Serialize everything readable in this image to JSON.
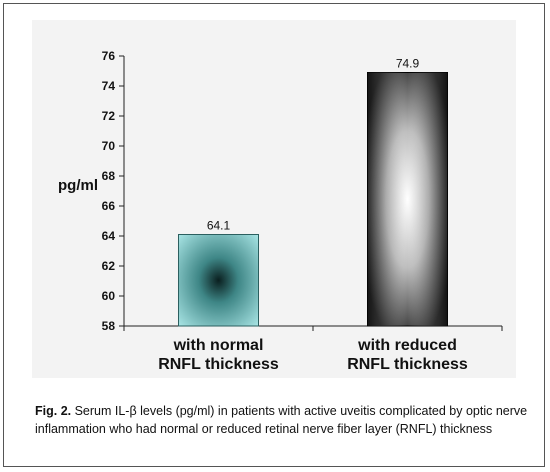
{
  "chart_data": {
    "type": "bar",
    "categories": [
      [
        "with normal",
        "RNFL thickness"
      ],
      [
        "with reduced",
        "RNFL thickness"
      ]
    ],
    "values": [
      64.1,
      74.9
    ],
    "value_labels": [
      "64.1",
      "74.9"
    ],
    "ylabel": "pg/ml",
    "xlabel": "",
    "title": "",
    "ylim": [
      58,
      76
    ],
    "yticks": [
      58,
      60,
      62,
      64,
      66,
      68,
      70,
      72,
      74,
      76
    ],
    "grid": false,
    "legend": "none",
    "bar_styles": [
      "cyan-gradient",
      "gray-gradient"
    ]
  },
  "caption": {
    "label": "Fig. 2.",
    "text": " Serum IL-β levels (pg/ml) in patients with active uveitis complicated by optic nerve inflammation who had normal or reduced retinal nerve fiber layer (RNFL) thickness"
  },
  "colors": {
    "bar1_edge": "#8fd3d3",
    "bar1_center": "#0d2b2b",
    "bar2_edge": "#1a1a1a",
    "bar2_center": "#ffffff",
    "panel": "#f3f3f3"
  }
}
